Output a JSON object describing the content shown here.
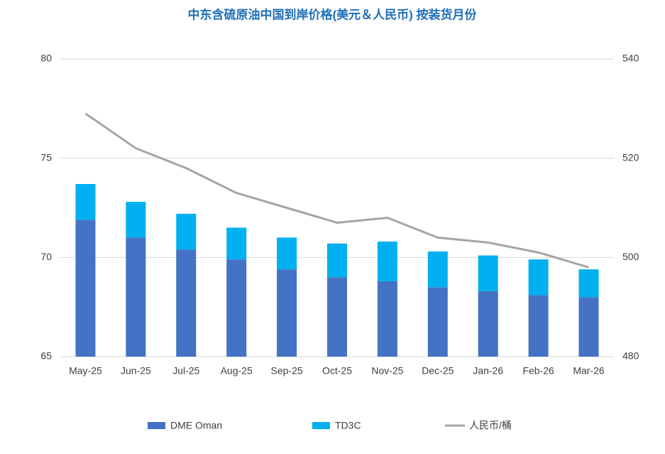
{
  "chart_data": {
    "type": "bar",
    "stacked": true,
    "title": "中东含硫原油中国到岸价格(美元＆人民币) 按装货月份",
    "categories": [
      "May-25",
      "Jun-25",
      "Jul-25",
      "Aug-25",
      "Sep-25",
      "Oct-25",
      "Nov-25",
      "Dec-25",
      "Jan-26",
      "Feb-26",
      "Mar-26"
    ],
    "series": [
      {
        "name": "DME Oman",
        "color": "#4472c4",
        "type": "bar",
        "values": [
          71.9,
          71.0,
          70.4,
          69.9,
          69.4,
          69.0,
          68.8,
          68.5,
          68.3,
          68.1,
          68.0
        ]
      },
      {
        "name": "TD3C",
        "color": "#00b0f0",
        "type": "bar",
        "values": [
          1.8,
          1.8,
          1.8,
          1.6,
          1.6,
          1.7,
          2.0,
          1.8,
          1.8,
          1.8,
          1.4
        ]
      },
      {
        "name": "人民币/桶",
        "color": "#a5a5a5",
        "type": "line",
        "axis": "y2",
        "values": [
          529,
          522,
          518,
          513,
          510,
          507,
          508,
          504,
          503,
          501,
          498
        ]
      }
    ],
    "ylim": [
      65,
      80
    ],
    "yticks": [
      65,
      70,
      75,
      80
    ],
    "y2lim": [
      480,
      540
    ],
    "y2ticks": [
      480,
      500,
      520,
      540
    ],
    "grid": true,
    "legend": "bottom"
  }
}
